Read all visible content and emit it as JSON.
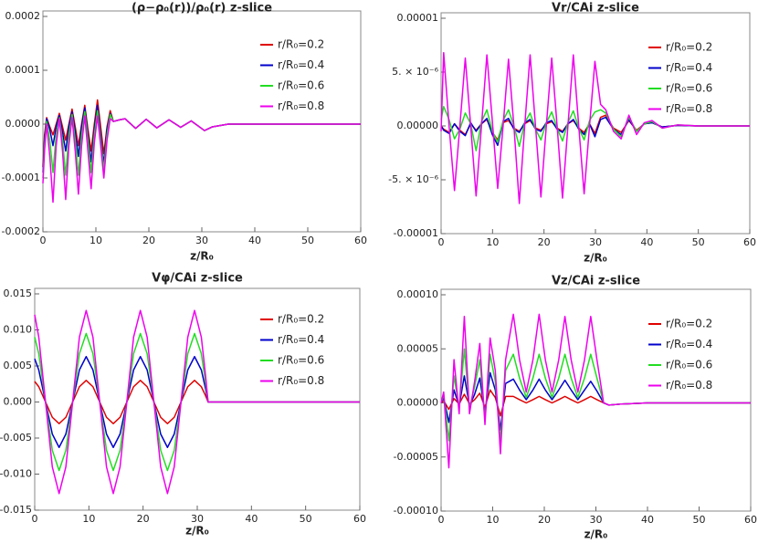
{
  "chart_data": [
    {
      "type": "line",
      "title": "(ρ−ρ₀(r))/ρ₀(r) z-slice",
      "x_label": "z/R₀",
      "x": [
        0,
        0.3,
        0.7,
        1.3,
        1.9,
        2.5,
        3.1,
        3.7,
        4.3,
        4.9,
        5.5,
        6.1,
        6.7,
        7.3,
        7.9,
        8.5,
        9.1,
        9.7,
        10.3,
        10.9,
        11.5,
        12.1,
        12.7,
        13.3,
        14.5,
        15.5,
        17.5,
        19.5,
        21.5,
        23.8,
        26,
        28,
        30.5,
        32,
        35,
        40,
        50,
        60
      ],
      "series": [
        {
          "name": "r/R₀=0.2",
          "color": "#e00000",
          "values": [
            -8e-05,
            -2e-05,
            1.2e-05,
            -5e-06,
            -2e-05,
            0,
            2e-05,
            -5e-06,
            -3e-05,
            0,
            2.8e-05,
            -5e-06,
            -4e-05,
            0,
            3.5e-05,
            -1e-05,
            -5e-05,
            0,
            4.5e-05,
            -5e-06,
            -5.5e-05,
            -5e-06,
            2.5e-05,
            5e-06,
            8e-06,
            1e-05,
            -8e-06,
            9e-06,
            -7e-06,
            8e-06,
            -6e-06,
            6e-06,
            -1.2e-05,
            -5e-06,
            0,
            0,
            0,
            0
          ]
        },
        {
          "name": "r/R₀=0.4",
          "color": "#0000cc",
          "values": [
            -9e-05,
            -3e-05,
            1e-05,
            -1e-05,
            -4e-05,
            -5e-06,
            1.6e-05,
            -1.5e-05,
            -5e-05,
            -5e-06,
            2.3e-05,
            -1.5e-05,
            -6e-05,
            -5e-06,
            3e-05,
            -2e-05,
            -7e-05,
            -1e-05,
            3.5e-05,
            -2e-05,
            -7.5e-05,
            -1e-05,
            2e-05,
            5e-06,
            8e-06,
            1e-05,
            -8e-06,
            9e-06,
            -7e-06,
            8e-06,
            -6e-06,
            6e-06,
            -1.2e-05,
            -5e-06,
            0,
            0,
            0,
            0
          ]
        },
        {
          "name": "r/R₀=0.6",
          "color": "#22dd22",
          "values": [
            -0.0001,
            -4e-05,
            5e-06,
            -3e-05,
            -9e-05,
            -2e-05,
            1.2e-05,
            -3e-05,
            -9.5e-05,
            -2e-05,
            1.8e-05,
            -3e-05,
            -9.5e-05,
            -2e-05,
            2.3e-05,
            -3e-05,
            -9e-05,
            -2e-05,
            2.5e-05,
            -3e-05,
            -8.5e-05,
            -2e-05,
            1.8e-05,
            5e-06,
            8e-06,
            1e-05,
            -8e-06,
            9e-06,
            -7e-06,
            8e-06,
            -6e-06,
            6e-06,
            -1.2e-05,
            -5e-06,
            0,
            0,
            0,
            0
          ]
        },
        {
          "name": "r/R₀=0.8",
          "color": "#ee00ee",
          "values": [
            -0.00011,
            -5e-05,
            0,
            -6e-05,
            -0.000145,
            -4e-05,
            1e-05,
            -5e-05,
            -0.00014,
            -4e-05,
            1.2e-05,
            -5e-05,
            -0.00013,
            -4e-05,
            1.5e-05,
            -5e-05,
            -0.00012,
            -3.5e-05,
            1.5e-05,
            -4e-05,
            -0.0001,
            -3e-05,
            1e-05,
            5e-06,
            8e-06,
            1e-05,
            -8e-06,
            9e-06,
            -7e-06,
            8e-06,
            -6e-06,
            6e-06,
            -1.2e-05,
            -5e-06,
            0,
            0,
            0,
            0
          ]
        }
      ],
      "xlim": [
        0,
        60
      ],
      "xticks": [
        0,
        10,
        20,
        30,
        40,
        50,
        60
      ],
      "ylim": [
        -0.0002,
        0.0002
      ],
      "yticks": [
        -0.0002,
        -0.0001,
        {
          "value": 0,
          "label": "0.0000"
        },
        0.0001,
        0.0002
      ]
    },
    {
      "type": "line",
      "title": "Vr/CAi z-slice",
      "x_label": "z/R₀",
      "x": [
        0,
        0.5,
        1.55,
        2.6,
        3.65,
        4.7,
        5.75,
        6.8,
        7.85,
        8.9,
        9.95,
        11,
        12.05,
        13.1,
        14.15,
        15.2,
        16.25,
        17.3,
        18.35,
        19.4,
        20.45,
        21.5,
        22.55,
        23.6,
        24.65,
        25.7,
        26.75,
        27.8,
        28.85,
        29.9,
        31,
        32,
        33.5,
        35,
        36.5,
        38,
        39.5,
        41,
        43,
        46,
        50,
        55,
        60
      ],
      "series": [
        {
          "name": "r/R₀=0.2",
          "color": "#e00000",
          "values": [
            0,
            -3e-07,
            -6e-07,
            2e-07,
            -4e-07,
            -8e-07,
            2e-07,
            -4e-07,
            2e-07,
            6e-07,
            -6e-07,
            -1.3e-06,
            3e-07,
            5e-07,
            -2e-07,
            -5e-07,
            2e-07,
            5e-07,
            -2e-07,
            -4e-07,
            2e-07,
            4e-07,
            -2e-07,
            -5e-07,
            2e-07,
            5e-07,
            -2e-07,
            -6e-07,
            2e-07,
            -7e-07,
            8e-07,
            1e-06,
            -2e-07,
            -6e-07,
            5e-07,
            -4e-07,
            2e-07,
            3e-07,
            -1e-07,
            5e-08,
            0,
            0,
            0
          ]
        },
        {
          "name": "r/R₀=0.4",
          "color": "#0000cc",
          "values": [
            0,
            -4e-07,
            -7e-07,
            2e-07,
            -5e-07,
            -9e-07,
            3e-07,
            -5e-07,
            2e-07,
            7e-07,
            -8e-07,
            -1.8e-06,
            4e-07,
            7e-07,
            -3e-07,
            -6e-07,
            3e-07,
            6e-07,
            -3e-07,
            -5e-07,
            3e-07,
            5e-07,
            -3e-07,
            -6e-07,
            2e-07,
            6e-07,
            -3e-07,
            -8e-07,
            2e-07,
            -1e-06,
            6e-07,
            8e-07,
            -3e-07,
            -8e-07,
            6e-07,
            -5e-07,
            2e-07,
            3e-07,
            -1e-07,
            5e-08,
            0,
            0,
            0
          ]
        },
        {
          "name": "r/R₀=0.6",
          "color": "#22dd22",
          "values": [
            6e-07,
            1.8e-06,
            6e-07,
            -1.2e-06,
            -3e-07,
            1.2e-06,
            2e-07,
            -2.3e-06,
            4e-07,
            1.5e-06,
            -5e-07,
            -1.5e-06,
            5e-07,
            1.5e-06,
            0,
            -1.9e-06,
            3e-07,
            1.2e-06,
            -3e-07,
            -1.3e-06,
            3e-07,
            1.3e-06,
            -2e-07,
            -1.4e-06,
            3e-07,
            1.4e-06,
            -2e-07,
            -1.3e-06,
            5e-07,
            1.3e-06,
            1.5e-06,
            1.2e-06,
            -3e-07,
            -1e-06,
            8e-07,
            -5e-07,
            2e-07,
            4e-07,
            -2e-07,
            1e-07,
            0,
            0,
            0
          ]
        },
        {
          "name": "r/R₀=0.8",
          "color": "#ee00ee",
          "values": [
            -5e-07,
            6.8e-06,
            0,
            -6e-06,
            0,
            6.3e-06,
            0,
            -6.5e-06,
            0,
            6.6e-06,
            5e-07,
            -5.8e-06,
            0,
            6.2e-06,
            0,
            -7.2e-06,
            0,
            6.6e-06,
            0,
            -6.6e-06,
            0,
            6.3e-06,
            0,
            -6.7e-06,
            0,
            6.6e-06,
            0,
            -6.3e-06,
            0,
            6e-06,
            2e-06,
            1.5e-06,
            -5e-07,
            -1.2e-06,
            1e-06,
            -8e-07,
            3e-07,
            5e-07,
            -2e-07,
            1e-07,
            0,
            0,
            0
          ]
        }
      ],
      "xlim": [
        0,
        60
      ],
      "xticks": [
        0,
        10,
        20,
        30,
        40,
        50,
        60
      ],
      "ylim": [
        -1e-05,
        1e-05
      ],
      "yticks": [
        -1e-05,
        {
          "value": -5e-06,
          "label": "-5. × 10⁻⁶"
        },
        {
          "value": 0,
          "label": "0.00000"
        },
        {
          "value": 5e-06,
          "label": "5. × 10⁻⁶"
        },
        1e-05
      ]
    },
    {
      "type": "line",
      "title": "Vφ/CAi z-slice",
      "x_label": "z/R₀",
      "x": [
        0,
        0.75,
        2,
        3.25,
        4.5,
        5.75,
        7,
        8.25,
        9.5,
        10.75,
        12,
        13.25,
        14.5,
        15.75,
        17,
        18.25,
        19.5,
        20.75,
        22,
        23.25,
        24.5,
        25.75,
        27,
        28.25,
        29.5,
        30.75,
        31.5,
        32,
        40,
        50,
        60
      ],
      "series": [
        {
          "name": "r/R₀=0.2",
          "color": "#e00000",
          "values": [
            0.00285,
            0.00212,
            0,
            -0.00212,
            -0.003,
            -0.00212,
            0,
            0.00212,
            0.003,
            0.00212,
            0,
            -0.00212,
            -0.003,
            -0.00212,
            0,
            0.00212,
            0.003,
            0.00212,
            0,
            -0.00212,
            -0.003,
            -0.00212,
            0,
            0.00212,
            0.003,
            0.00212,
            0.00093,
            0,
            0,
            0,
            0
          ]
        },
        {
          "name": "r/R₀=0.4",
          "color": "#0000cc",
          "values": [
            0.006,
            0.00445,
            0,
            -0.00445,
            -0.0063,
            -0.00445,
            0,
            0.00445,
            0.0063,
            0.00445,
            0,
            -0.00445,
            -0.0063,
            -0.00445,
            0,
            0.00445,
            0.0063,
            0.00445,
            0,
            -0.00445,
            -0.0063,
            -0.00445,
            0,
            0.00445,
            0.0063,
            0.00445,
            0.00195,
            0,
            0,
            0,
            0
          ]
        },
        {
          "name": "r/R₀=0.6",
          "color": "#22dd22",
          "values": [
            0.009,
            0.0067,
            0,
            -0.0067,
            -0.0095,
            -0.0067,
            0,
            0.0067,
            0.0095,
            0.0067,
            0,
            -0.0067,
            -0.0095,
            -0.0067,
            0,
            0.0067,
            0.0095,
            0.0067,
            0,
            -0.0067,
            -0.0095,
            -0.0067,
            0,
            0.0067,
            0.0095,
            0.0067,
            0.0029,
            0,
            0,
            0,
            0
          ]
        },
        {
          "name": "r/R₀=0.8",
          "color": "#ee00ee",
          "values": [
            0.0121,
            0.009,
            0,
            -0.009,
            -0.0127,
            -0.009,
            0,
            0.009,
            0.0127,
            0.009,
            0,
            -0.009,
            -0.0127,
            -0.009,
            0,
            0.009,
            0.0127,
            0.009,
            0,
            -0.009,
            -0.0127,
            -0.009,
            0,
            0.009,
            0.0127,
            0.009,
            0.0039,
            0,
            0,
            0,
            0
          ]
        }
      ],
      "xlim": [
        0,
        60
      ],
      "xticks": [
        0,
        10,
        20,
        30,
        40,
        50,
        60
      ],
      "ylim": [
        -0.015,
        0.015
      ],
      "yticks": [
        -0.015,
        {
          "value": -0.01,
          "label": "-0.010"
        },
        -0.005,
        {
          "value": 0,
          "label": "0.000"
        },
        0.005,
        {
          "value": 0.01,
          "label": "0.010"
        },
        0.015
      ]
    },
    {
      "type": "line",
      "title": "Vz/CAi z-slice",
      "x_label": "z/R₀",
      "x": [
        0,
        0.5,
        1.5,
        2.5,
        3.5,
        4.5,
        5.5,
        6.5,
        7.5,
        8.5,
        9.5,
        10.5,
        11.5,
        12.5,
        14,
        15.2,
        16.5,
        17.8,
        19,
        20.2,
        21.5,
        22.8,
        24,
        25.2,
        26.5,
        27.8,
        29,
        30.2,
        31.5,
        32.5,
        35,
        40,
        50,
        60
      ],
      "series": [
        {
          "name": "r/R₀=0.2",
          "color": "#e00000",
          "values": [
            0,
            2e-06,
            -6e-06,
            4e-06,
            -1e-06,
            8e-06,
            -1e-06,
            3e-06,
            9e-06,
            -4e-06,
            1.2e-05,
            5e-06,
            -1.2e-05,
            6e-06,
            6e-06,
            3e-06,
            0,
            3e-06,
            6e-06,
            3e-06,
            0,
            3e-06,
            6e-06,
            3e-06,
            0,
            3e-06,
            6e-06,
            3e-06,
            0,
            -2e-06,
            -1e-06,
            0,
            0,
            0
          ]
        },
        {
          "name": "r/R₀=0.4",
          "color": "#0000cc",
          "values": [
            0,
            5e-06,
            -1.8e-05,
            1.2e-05,
            -3e-06,
            2.5e-05,
            -3e-06,
            8e-06,
            2.3e-05,
            -1e-05,
            2.8e-05,
            1.2e-05,
            -2.5e-05,
            1.8e-05,
            2.2e-05,
            1.2e-05,
            3e-06,
            1.2e-05,
            2.2e-05,
            1.2e-05,
            3e-06,
            1.2e-05,
            2.1e-05,
            1.2e-05,
            3e-06,
            1.2e-05,
            2e-05,
            1.1e-05,
            0,
            -2e-06,
            -1e-06,
            0,
            0,
            0
          ]
        },
        {
          "name": "r/R₀=0.6",
          "color": "#22dd22",
          "values": [
            0,
            8e-06,
            -3.5e-05,
            2.5e-05,
            -5e-06,
            5e-05,
            -5e-06,
            1.5e-05,
            4e-05,
            -1.5e-05,
            4.5e-05,
            2e-05,
            -3.5e-05,
            3e-05,
            4.5e-05,
            2.3e-05,
            5e-06,
            2.3e-05,
            4.5e-05,
            2.3e-05,
            5e-06,
            2.3e-05,
            4.5e-05,
            2.3e-05,
            5e-06,
            2.3e-05,
            4.5e-05,
            2.3e-05,
            0,
            -2e-06,
            -1e-06,
            0,
            0,
            0
          ]
        },
        {
          "name": "r/R₀=0.8",
          "color": "#ee00ee",
          "values": [
            0,
            1e-05,
            -6e-05,
            4e-05,
            -1e-05,
            8e-05,
            -1e-05,
            2e-05,
            5.5e-05,
            -2e-05,
            6e-05,
            3e-05,
            -4.7e-05,
            4e-05,
            8.2e-05,
            4e-05,
            1e-05,
            4e-05,
            8.2e-05,
            4e-05,
            1e-05,
            4e-05,
            8e-05,
            4e-05,
            1e-05,
            4e-05,
            8e-05,
            4e-05,
            0,
            -2e-06,
            -1e-06,
            0,
            0,
            0
          ]
        }
      ],
      "xlim": [
        0,
        60
      ],
      "xticks": [
        0,
        10,
        20,
        30,
        40,
        50,
        60
      ],
      "ylim": [
        -0.0001,
        0.0001
      ],
      "yticks": [
        {
          "value": -0.0001,
          "label": "-0.00010"
        },
        -5e-05,
        {
          "value": 0,
          "label": "0.00000"
        },
        5e-05,
        {
          "value": 0.0001,
          "label": "0.00010"
        }
      ]
    }
  ]
}
